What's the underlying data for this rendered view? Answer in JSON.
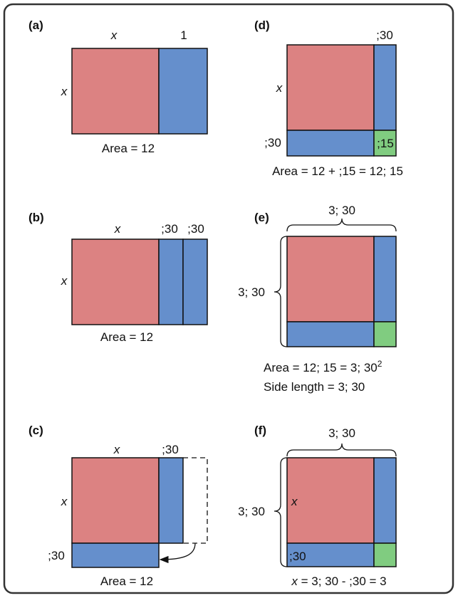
{
  "panels": {
    "a": {
      "tag": "(a)",
      "x_top": "x",
      "one_top": "1",
      "x_side": "x",
      "area": "Area = 12"
    },
    "b": {
      "tag": "(b)",
      "x_top": "x",
      "half1": ";30",
      "half2": ";30",
      "x_side": "x",
      "area": "Area = 12"
    },
    "c": {
      "tag": "(c)",
      "x_top": "x",
      "half_top": ";30",
      "x_side": "x",
      "half_side": ";30",
      "area": "Area = 12"
    },
    "d": {
      "tag": "(d)",
      "half_top": ";30",
      "x_side": "x",
      "half_side": ";30",
      "corner": ";15",
      "area": "Area = 12 + ;15 = 12; 15"
    },
    "e": {
      "tag": "(e)",
      "top": "3; 30",
      "side": "3; 30",
      "area_prefix": "Area = 12; 15 = 3; 30",
      "area_exp": "2",
      "side_length": "Side length = 3; 30"
    },
    "f": {
      "tag": "(f)",
      "top": "3; 30",
      "side": "3; 30",
      "x_inner": "x",
      "half_inner": ";30",
      "eq_var": "x",
      "eq_rest": " = 3; 30 - ;30 = 3"
    }
  },
  "colors": {
    "x_square": "#dc8282",
    "strip": "#658fcc",
    "corner": "#80cc80",
    "frame": "#333333"
  }
}
